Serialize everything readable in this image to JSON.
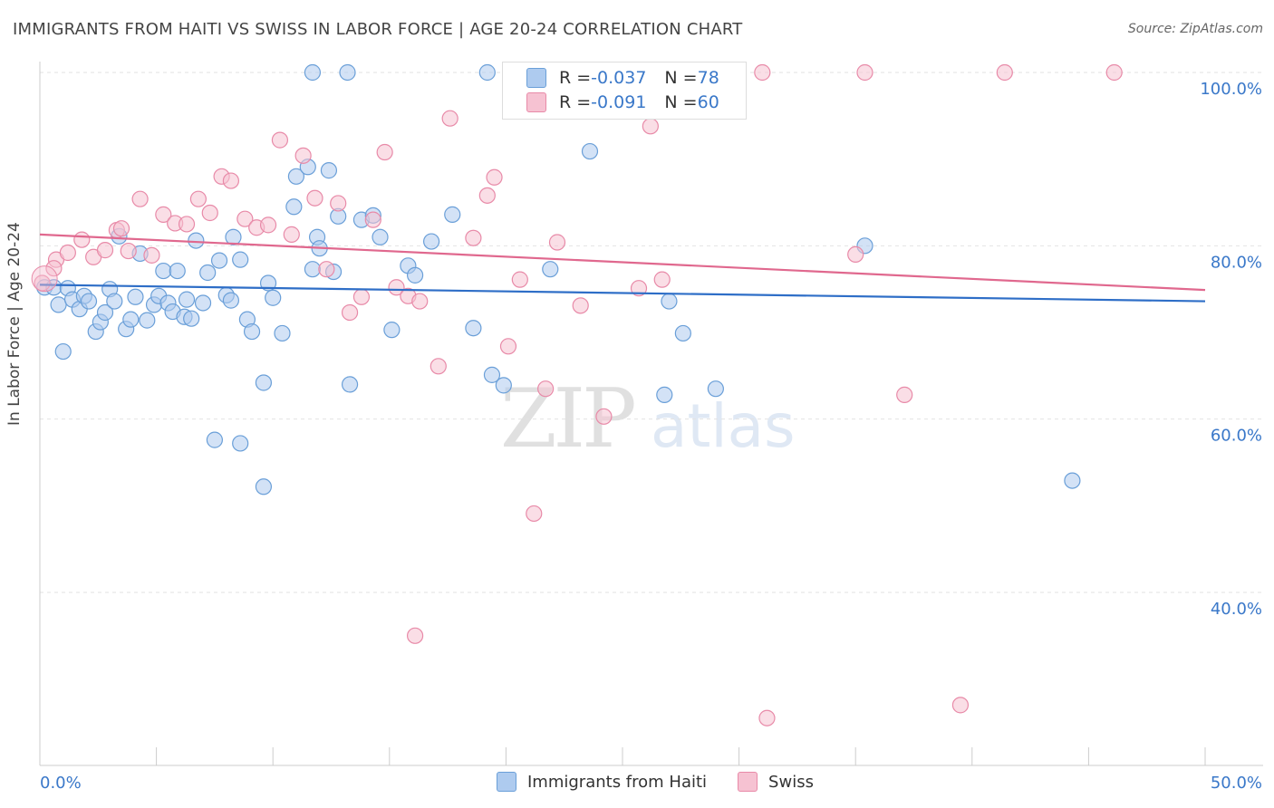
{
  "title": "IMMIGRANTS FROM HAITI VS SWISS IN LABOR FORCE | AGE 20-24 CORRELATION CHART",
  "source": "Source: ZipAtlas.com",
  "watermark": {
    "zip": "ZIP",
    "atlas": "atlas"
  },
  "legend_top": [
    {
      "r_label": "R = ",
      "r_value": "-0.037",
      "n_label": "N = ",
      "n_value": "78"
    },
    {
      "r_label": "R = ",
      "r_value": "-0.091",
      "n_label": "N = ",
      "n_value": "60"
    }
  ],
  "colors": {
    "haiti_fill": "#aecbef",
    "haiti_stroke": "#6a9fd8",
    "haiti_line": "#2e6ec7",
    "swiss_fill": "#f6c2d2",
    "swiss_stroke": "#e88aa8",
    "swiss_line": "#e0688e",
    "axis_text": "#3a78c9",
    "grid": "#e2e2e2"
  },
  "chart_data": {
    "type": "scatter",
    "title": "IMMIGRANTS FROM HAITI VS SWISS IN LABOR FORCE | AGE 20-24 CORRELATION CHART",
    "xlabel": "",
    "ylabel": "In Labor Force | Age 20-24",
    "xlim": [
      0,
      50
    ],
    "ylim": [
      20,
      102
    ],
    "x_tick_labels": [
      "0.0%",
      "50.0%"
    ],
    "y_tick_labels": [
      "40.0%",
      "60.0%",
      "80.0%",
      "100.0%"
    ],
    "y_ticks": [
      40,
      60,
      80,
      100
    ],
    "grid": true,
    "legend_position": "bottom",
    "series": [
      {
        "name": "Immigrants from Haiti",
        "trend": [
          [
            0,
            75.5
          ],
          [
            50,
            73.6
          ]
        ],
        "points": [
          [
            0.2,
            75.2
          ],
          [
            0.6,
            75.2
          ],
          [
            0.8,
            73.2
          ],
          [
            1.2,
            75.1
          ],
          [
            1.4,
            73.8
          ],
          [
            1.7,
            72.7
          ],
          [
            1.9,
            74.2
          ],
          [
            2.1,
            73.6
          ],
          [
            2.4,
            70.1
          ],
          [
            2.6,
            71.2
          ],
          [
            2.8,
            72.3
          ],
          [
            3.0,
            75.0
          ],
          [
            3.2,
            73.6
          ],
          [
            3.4,
            81.1
          ],
          [
            3.7,
            70.4
          ],
          [
            3.9,
            71.5
          ],
          [
            4.1,
            74.1
          ],
          [
            4.3,
            79.1
          ],
          [
            4.6,
            71.4
          ],
          [
            4.9,
            73.2
          ],
          [
            5.1,
            74.2
          ],
          [
            5.3,
            77.1
          ],
          [
            5.5,
            73.4
          ],
          [
            5.7,
            72.4
          ],
          [
            5.9,
            77.1
          ],
          [
            6.2,
            71.8
          ],
          [
            6.3,
            73.8
          ],
          [
            6.5,
            71.6
          ],
          [
            6.7,
            80.6
          ],
          [
            7.0,
            73.4
          ],
          [
            7.2,
            76.9
          ],
          [
            7.7,
            78.3
          ],
          [
            8.0,
            74.3
          ],
          [
            8.2,
            73.7
          ],
          [
            8.3,
            81.0
          ],
          [
            8.6,
            78.4
          ],
          [
            8.9,
            71.5
          ],
          [
            9.1,
            70.1
          ],
          [
            9.6,
            64.2
          ],
          [
            9.8,
            75.7
          ],
          [
            10.0,
            74.0
          ],
          [
            10.4,
            69.9
          ],
          [
            10.9,
            84.5
          ],
          [
            11.0,
            88.0
          ],
          [
            11.5,
            89.1
          ],
          [
            11.7,
            77.3
          ],
          [
            11.9,
            81.0
          ],
          [
            12.0,
            79.7
          ],
          [
            12.4,
            88.7
          ],
          [
            12.6,
            77.0
          ],
          [
            12.8,
            83.4
          ],
          [
            13.3,
            64.0
          ],
          [
            13.8,
            83.0
          ],
          [
            14.3,
            83.5
          ],
          [
            14.6,
            81.0
          ],
          [
            15.1,
            70.3
          ],
          [
            15.8,
            77.7
          ],
          [
            16.1,
            76.6
          ],
          [
            16.8,
            80.5
          ],
          [
            17.7,
            83.6
          ],
          [
            18.6,
            70.5
          ],
          [
            19.4,
            65.1
          ],
          [
            19.9,
            63.9
          ],
          [
            21.9,
            77.3
          ],
          [
            23.6,
            90.9
          ],
          [
            26.8,
            62.8
          ],
          [
            27.0,
            73.6
          ],
          [
            27.6,
            69.9
          ],
          [
            29.0,
            63.5
          ],
          [
            35.4,
            80.0
          ],
          [
            44.3,
            52.9
          ],
          [
            7.5,
            57.6
          ],
          [
            8.6,
            57.2
          ],
          [
            9.6,
            52.2
          ],
          [
            11.7,
            100.0
          ],
          [
            13.2,
            100.0
          ],
          [
            19.2,
            100.0
          ],
          [
            1.0,
            67.8
          ]
        ]
      },
      {
        "name": "Swiss",
        "trend": [
          [
            0,
            81.3
          ],
          [
            50,
            74.9
          ]
        ],
        "points": [
          [
            0.1,
            75.7
          ],
          [
            0.7,
            78.4
          ],
          [
            1.2,
            79.2
          ],
          [
            1.8,
            80.7
          ],
          [
            2.3,
            78.7
          ],
          [
            2.8,
            79.5
          ],
          [
            3.3,
            81.8
          ],
          [
            3.8,
            79.4
          ],
          [
            4.3,
            85.4
          ],
          [
            4.8,
            78.9
          ],
          [
            5.3,
            83.6
          ],
          [
            5.8,
            82.6
          ],
          [
            6.3,
            82.5
          ],
          [
            6.8,
            85.4
          ],
          [
            7.3,
            83.8
          ],
          [
            7.8,
            88.0
          ],
          [
            8.2,
            87.5
          ],
          [
            8.8,
            83.1
          ],
          [
            9.3,
            82.1
          ],
          [
            9.8,
            82.4
          ],
          [
            10.3,
            92.2
          ],
          [
            10.8,
            81.3
          ],
          [
            11.3,
            90.4
          ],
          [
            11.8,
            85.5
          ],
          [
            12.3,
            77.3
          ],
          [
            12.8,
            84.9
          ],
          [
            13.3,
            72.3
          ],
          [
            13.8,
            74.1
          ],
          [
            14.3,
            83.0
          ],
          [
            14.8,
            90.8
          ],
          [
            15.3,
            75.2
          ],
          [
            15.8,
            74.2
          ],
          [
            16.3,
            73.6
          ],
          [
            17.1,
            66.1
          ],
          [
            17.6,
            94.7
          ],
          [
            18.6,
            80.9
          ],
          [
            19.2,
            85.8
          ],
          [
            19.5,
            87.9
          ],
          [
            20.1,
            68.4
          ],
          [
            20.6,
            76.1
          ],
          [
            21.2,
            49.1
          ],
          [
            21.7,
            63.5
          ],
          [
            22.2,
            80.4
          ],
          [
            23.2,
            73.1
          ],
          [
            24.2,
            60.3
          ],
          [
            25.7,
            75.1
          ],
          [
            26.2,
            93.8
          ],
          [
            26.7,
            76.1
          ],
          [
            31.2,
            25.5
          ],
          [
            35.0,
            79.0
          ],
          [
            37.1,
            62.8
          ],
          [
            39.5,
            27.0
          ],
          [
            16.1,
            35.0
          ],
          [
            25.2,
            100.0
          ],
          [
            31.0,
            100.0
          ],
          [
            35.4,
            100.0
          ],
          [
            41.4,
            100.0
          ],
          [
            46.1,
            100.0
          ],
          [
            0.6,
            77.4
          ],
          [
            3.5,
            82.0
          ]
        ]
      }
    ]
  }
}
